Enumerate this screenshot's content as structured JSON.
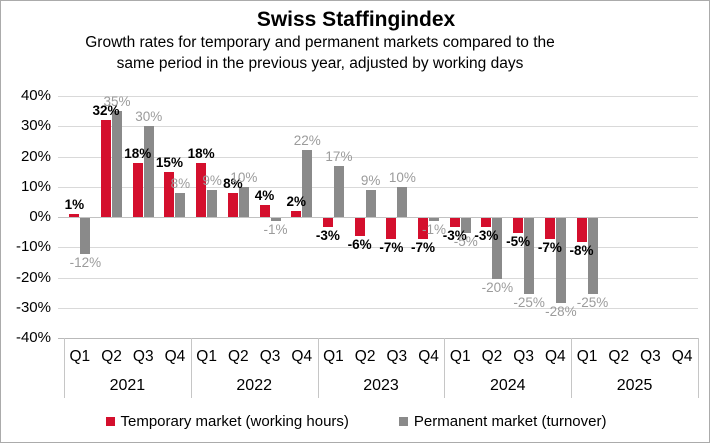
{
  "chart_data": {
    "type": "bar",
    "title": "Swiss Staffingindex",
    "subtitle_lines": [
      "Growth rates for temporary and permanent markets compared to the",
      "same period in the previous year, adjusted by working days"
    ],
    "years": [
      "2021",
      "2022",
      "2023",
      "2024",
      "2025"
    ],
    "quarters_per_year": [
      "Q1",
      "Q2",
      "Q3",
      "Q4"
    ],
    "categories": [
      "2021 Q1",
      "2021 Q2",
      "2021 Q3",
      "2021 Q4",
      "2022 Q1",
      "2022 Q2",
      "2022 Q3",
      "2022 Q4",
      "2023 Q1",
      "2023 Q2",
      "2023 Q3",
      "2023 Q4",
      "2024 Q1",
      "2024 Q2",
      "2024 Q3",
      "2024 Q4",
      "2025 Q1",
      "2025 Q2",
      "2025 Q3",
      "2025 Q4"
    ],
    "series": [
      {
        "name": "Temporary market (working hours)",
        "color": "#D40F2D",
        "label_color": "#000000",
        "label_bold": true,
        "values": [
          1,
          32,
          18,
          15,
          18,
          8,
          4,
          2,
          -3,
          -6,
          -7,
          -7,
          -3,
          -3,
          -5,
          -7,
          -8,
          null,
          null,
          null
        ]
      },
      {
        "name": "Permanent market (turnover)",
        "color": "#8A8A8A",
        "label_color": "#9B9B9B",
        "label_bold": false,
        "values": [
          -12,
          35,
          30,
          8,
          9,
          10,
          -1,
          22,
          17,
          9,
          10,
          -1,
          -5,
          -20,
          -25,
          -28,
          -25,
          null,
          null,
          null
        ]
      }
    ],
    "ylim": [
      -40,
      40
    ],
    "ytick_step": 10,
    "ytick_labels": [
      "40%",
      "30%",
      "20%",
      "10%",
      "0%",
      "-10%",
      "-20%",
      "-30%",
      "-40%"
    ],
    "grid": true,
    "legend_position": "bottom",
    "colors": {
      "gridline": "#D9D9D9",
      "zero_line": "#C2C2C2",
      "axis_line": "#B9B9B9",
      "year_divider": "#C6C6C6"
    }
  }
}
